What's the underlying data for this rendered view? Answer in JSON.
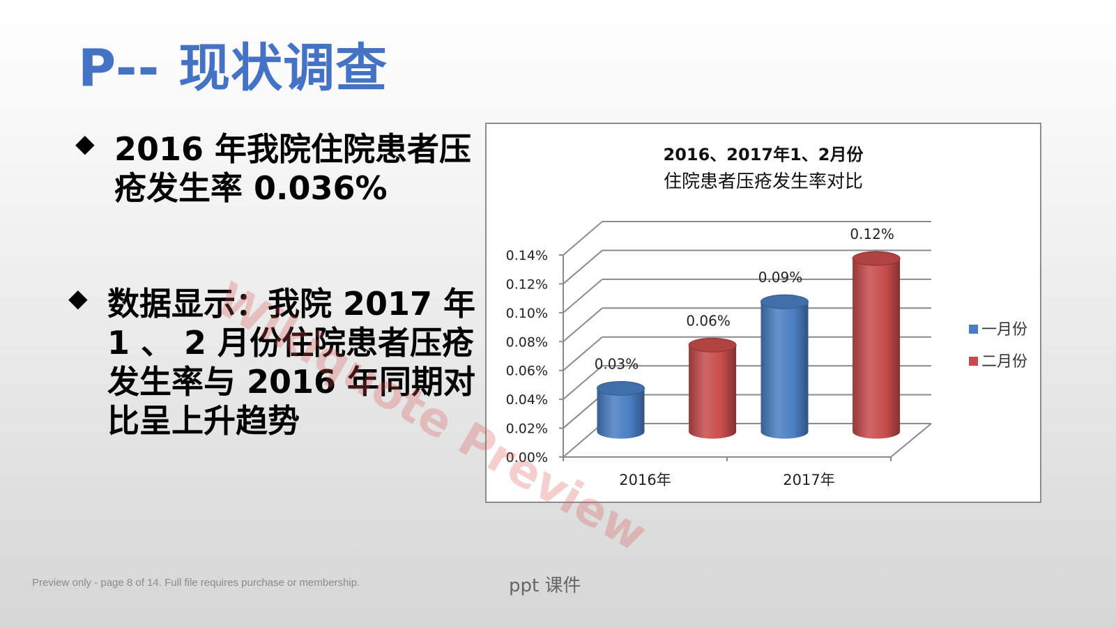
{
  "title": "P-- 现状调查",
  "bullets": [
    {
      "mark": "◆",
      "text": "2016 年我院住院患者压疮发生率 0.036%"
    },
    {
      "mark": "◆",
      "text": "数据显示：我院 2017 年 1 、 2 月份住院患者压疮发生率与 2016 年同期对比呈上升趋势"
    }
  ],
  "watermark": "Wikiquote Preview",
  "chart_data": {
    "type": "bar",
    "title_line1": "2016、2017年1、2月份",
    "title_line2": "住院患者压疮发生率对比",
    "categories": [
      "2016年",
      "2017年"
    ],
    "series": [
      {
        "name": "一月份",
        "values": [
          0.03,
          0.09
        ],
        "labels": [
          "0.03%",
          "0.09%"
        ],
        "color": "#4a7ec4"
      },
      {
        "name": "二月份",
        "values": [
          0.06,
          0.12
        ],
        "labels": [
          "0.06%",
          "0.12%"
        ],
        "color": "#c84b4b"
      }
    ],
    "ylim": [
      0,
      0.14
    ],
    "yticks": [
      "0.00%",
      "0.02%",
      "0.04%",
      "0.06%",
      "0.08%",
      "0.10%",
      "0.12%",
      "0.14%"
    ],
    "grid": true,
    "legend": "right"
  },
  "footer": {
    "note": "Preview only - page 8 of 14. Full file requires purchase or membership.",
    "brand": "ppt 课件"
  }
}
